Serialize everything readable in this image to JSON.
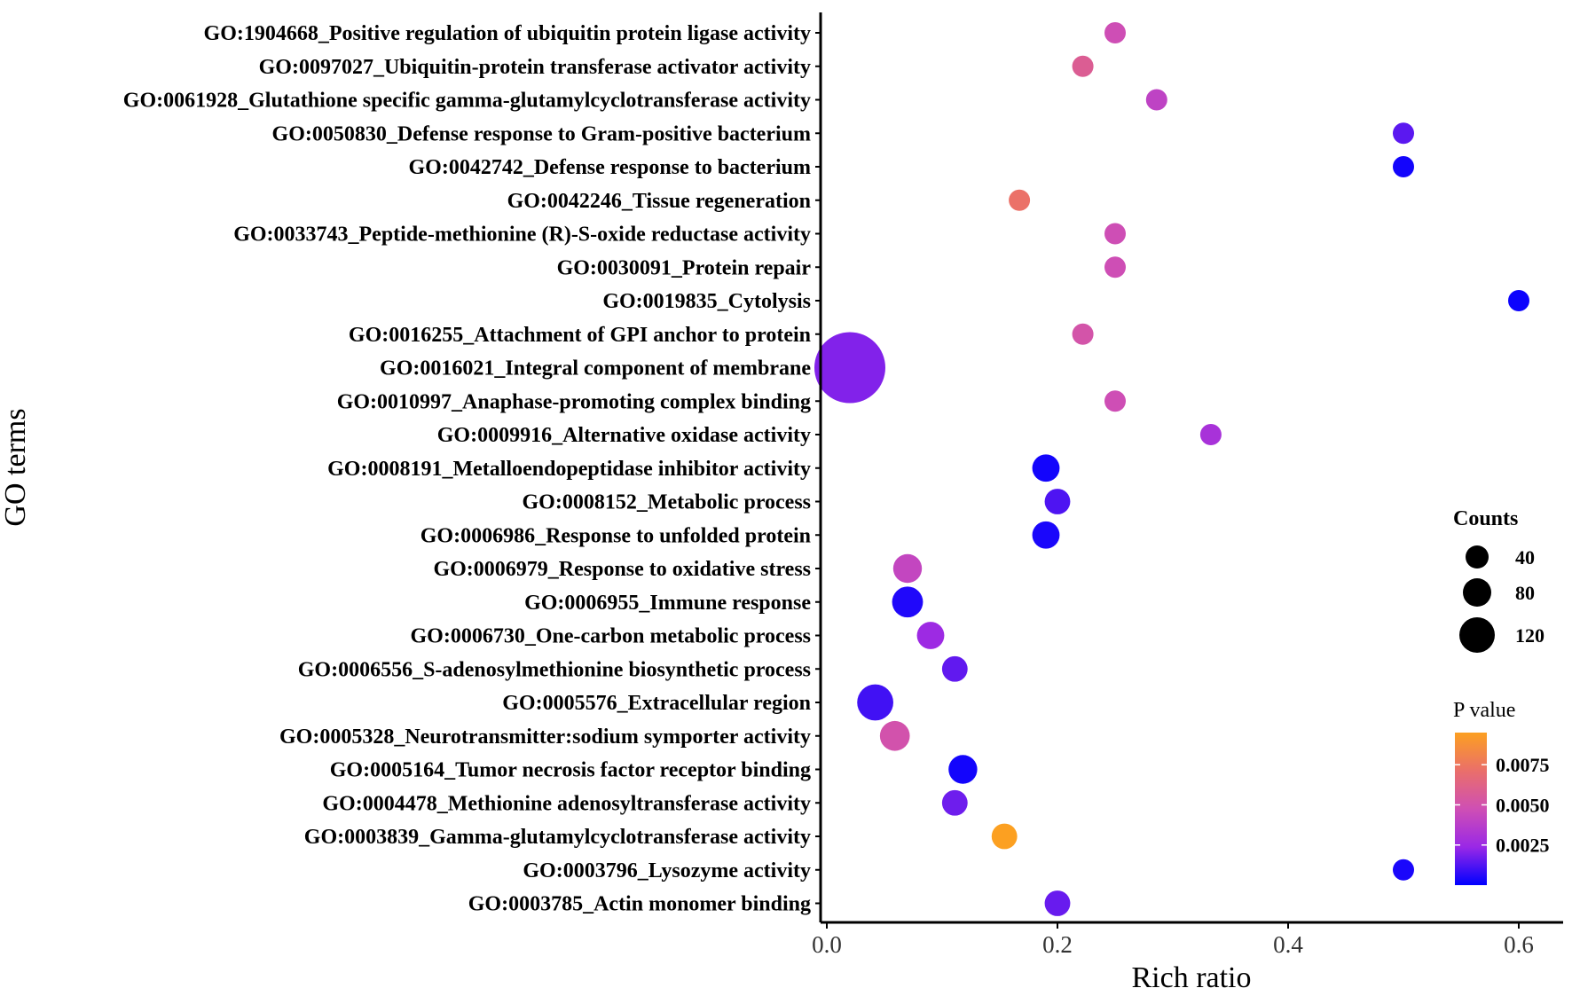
{
  "chart_data": {
    "type": "scatter",
    "title": "",
    "xlabel": "Rich ratio",
    "ylabel": "GO terms",
    "xlim": [
      -0.01,
      0.63
    ],
    "xticks": [
      0.0,
      0.2,
      0.4,
      0.6
    ],
    "xtick_labels": [
      "0.0",
      "0.2",
      "0.4",
      "0.6"
    ],
    "grid": false,
    "points": [
      {
        "term": "GO:1904668_Positive regulation of ubiquitin protein ligase activity",
        "rich_ratio": 0.25,
        "counts": 1,
        "p_value": 0.0047
      },
      {
        "term": "GO:0097027_Ubiquitin-protein transferase activator activity",
        "rich_ratio": 0.222,
        "counts": 1,
        "p_value": 0.0058
      },
      {
        "term": "GO:0061928_Glutathione specific gamma-glutamylcyclotransferase activity",
        "rich_ratio": 0.286,
        "counts": 1,
        "p_value": 0.004
      },
      {
        "term": "GO:0050830_Defense response to Gram-positive bacterium",
        "rich_ratio": 0.5,
        "counts": 1,
        "p_value": 0.0014
      },
      {
        "term": "GO:0042742_Defense response to bacterium",
        "rich_ratio": 0.5,
        "counts": 1,
        "p_value": 0.0003
      },
      {
        "term": "GO:0042246_Tissue regeneration",
        "rich_ratio": 0.167,
        "counts": 1,
        "p_value": 0.0072
      },
      {
        "term": "GO:0033743_Peptide-methionine (R)-S-oxide reductase activity",
        "rich_ratio": 0.25,
        "counts": 1,
        "p_value": 0.0047
      },
      {
        "term": "GO:0030091_Protein repair",
        "rich_ratio": 0.25,
        "counts": 1,
        "p_value": 0.0047
      },
      {
        "term": "GO:0019835_Cytolysis",
        "rich_ratio": 0.6,
        "counts": 1,
        "p_value": 0.0002
      },
      {
        "term": "GO:0016255_Attachment of GPI anchor to protein",
        "rich_ratio": 0.222,
        "counts": 1,
        "p_value": 0.0051
      },
      {
        "term": "GO:0016021_Integral component of membrane",
        "rich_ratio": 0.02,
        "counts": 135,
        "p_value": 0.002
      },
      {
        "term": "GO:0010997_Anaphase-promoting complex binding",
        "rich_ratio": 0.25,
        "counts": 1,
        "p_value": 0.0047
      },
      {
        "term": "GO:0009916_Alternative oxidase activity",
        "rich_ratio": 0.333,
        "counts": 1,
        "p_value": 0.003
      },
      {
        "term": "GO:0008191_Metalloendopeptidase inhibitor activity",
        "rich_ratio": 0.19,
        "counts": 3,
        "p_value": 0.0003
      },
      {
        "term": "GO:0008152_Metabolic process",
        "rich_ratio": 0.2,
        "counts": 2,
        "p_value": 0.0012
      },
      {
        "term": "GO:0006986_Response to unfolded protein",
        "rich_ratio": 0.19,
        "counts": 3,
        "p_value": 0.0004
      },
      {
        "term": "GO:0006979_Response to oxidative stress",
        "rich_ratio": 0.07,
        "counts": 4,
        "p_value": 0.0042
      },
      {
        "term": "GO:0006955_Immune response",
        "rich_ratio": 0.07,
        "counts": 6,
        "p_value": 0.0005
      },
      {
        "term": "GO:0006730_One-carbon metabolic process",
        "rich_ratio": 0.09,
        "counts": 3,
        "p_value": 0.0025
      },
      {
        "term": "GO:0006556_S-adenosylmethionine biosynthetic process",
        "rich_ratio": 0.111,
        "counts": 2,
        "p_value": 0.0015
      },
      {
        "term": "GO:0005576_Extracellular region",
        "rich_ratio": 0.042,
        "counts": 13,
        "p_value": 0.001
      },
      {
        "term": "GO:0005328_Neurotransmitter:sodium symporter activity",
        "rich_ratio": 0.059,
        "counts": 5,
        "p_value": 0.005
      },
      {
        "term": "GO:0005164_Tumor necrosis factor receptor binding",
        "rich_ratio": 0.118,
        "counts": 4,
        "p_value": 0.0003
      },
      {
        "term": "GO:0004478_Methionine adenosyltransferase activity",
        "rich_ratio": 0.111,
        "counts": 2,
        "p_value": 0.0017
      },
      {
        "term": "GO:0003839_Gamma-glutamylcyclotransferase activity",
        "rich_ratio": 0.154,
        "counts": 2,
        "p_value": 0.0095
      },
      {
        "term": "GO:0003796_Lysozyme activity",
        "rich_ratio": 0.5,
        "counts": 1,
        "p_value": 0.0004
      },
      {
        "term": "GO:0003785_Actin monomer binding",
        "rich_ratio": 0.2,
        "counts": 2,
        "p_value": 0.0016
      }
    ],
    "legend_size": {
      "title": "Counts",
      "entries": [
        {
          "label": "40",
          "value": 40
        },
        {
          "label": "80",
          "value": 80
        },
        {
          "label": "120",
          "value": 120
        }
      ]
    },
    "legend_color": {
      "title": "P value",
      "range": [
        0.0,
        0.0095
      ],
      "ticks": [
        {
          "label": "0.0075",
          "value": 0.0075
        },
        {
          "label": "0.0050",
          "value": 0.005
        },
        {
          "label": "0.0025",
          "value": 0.0025
        }
      ],
      "colors": [
        "#0000ff",
        "#9a28e6",
        "#cf4fb4",
        "#ea6f6a",
        "#fca021"
      ]
    }
  }
}
